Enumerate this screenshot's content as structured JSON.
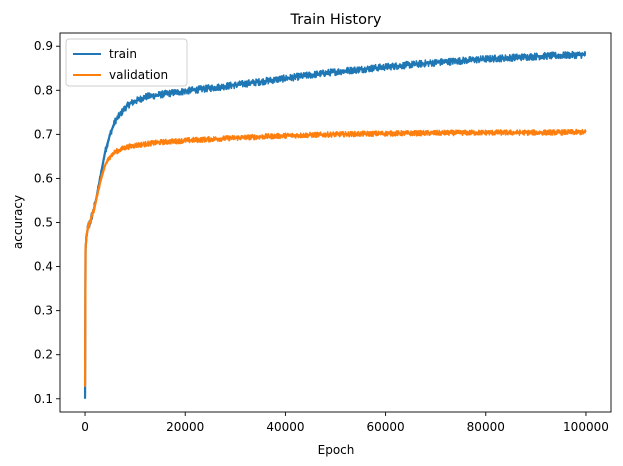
{
  "chart_data": {
    "type": "line",
    "title": "Train History",
    "xlabel": "Epoch",
    "ylabel": "accuracy",
    "xlim": [
      -5000,
      105000
    ],
    "ylim": [
      0.07,
      0.93
    ],
    "xticks": [
      0,
      20000,
      40000,
      60000,
      80000,
      100000
    ],
    "xtick_labels": [
      "0",
      "20000",
      "40000",
      "60000",
      "80000",
      "100000"
    ],
    "yticks": [
      0.1,
      0.2,
      0.3,
      0.4,
      0.5,
      0.6,
      0.7,
      0.8,
      0.9
    ],
    "ytick_labels": [
      "0.1",
      "0.2",
      "0.3",
      "0.4",
      "0.5",
      "0.6",
      "0.7",
      "0.8",
      "0.9"
    ],
    "grid": false,
    "legend_position": "top-left",
    "series": [
      {
        "name": "train",
        "color": "#1f77b4",
        "noise": 0.008,
        "x": [
          0,
          100,
          300,
          600,
          1000,
          1500,
          2000,
          3000,
          4000,
          5000,
          6000,
          7000,
          8000,
          9000,
          10000,
          12000,
          15000,
          18000,
          20000,
          25000,
          30000,
          40000,
          50000,
          60000,
          70000,
          80000,
          90000,
          100000
        ],
        "y": [
          0.1,
          0.44,
          0.47,
          0.49,
          0.5,
          0.52,
          0.54,
          0.6,
          0.66,
          0.7,
          0.73,
          0.745,
          0.76,
          0.77,
          0.775,
          0.785,
          0.79,
          0.795,
          0.798,
          0.805,
          0.812,
          0.827,
          0.842,
          0.853,
          0.863,
          0.871,
          0.877,
          0.881
        ]
      },
      {
        "name": "validation",
        "color": "#ff7f0e",
        "noise": 0.006,
        "x": [
          0,
          100,
          300,
          600,
          1000,
          1500,
          2000,
          3000,
          4000,
          5000,
          6000,
          7000,
          8000,
          10000,
          12000,
          15000,
          20000,
          25000,
          30000,
          40000,
          50000,
          60000,
          70000,
          80000,
          90000,
          100000
        ],
        "y": [
          0.13,
          0.44,
          0.47,
          0.49,
          0.5,
          0.52,
          0.54,
          0.59,
          0.63,
          0.65,
          0.66,
          0.665,
          0.67,
          0.675,
          0.678,
          0.682,
          0.686,
          0.689,
          0.692,
          0.697,
          0.7,
          0.702,
          0.703,
          0.704,
          0.704,
          0.705
        ]
      }
    ]
  }
}
